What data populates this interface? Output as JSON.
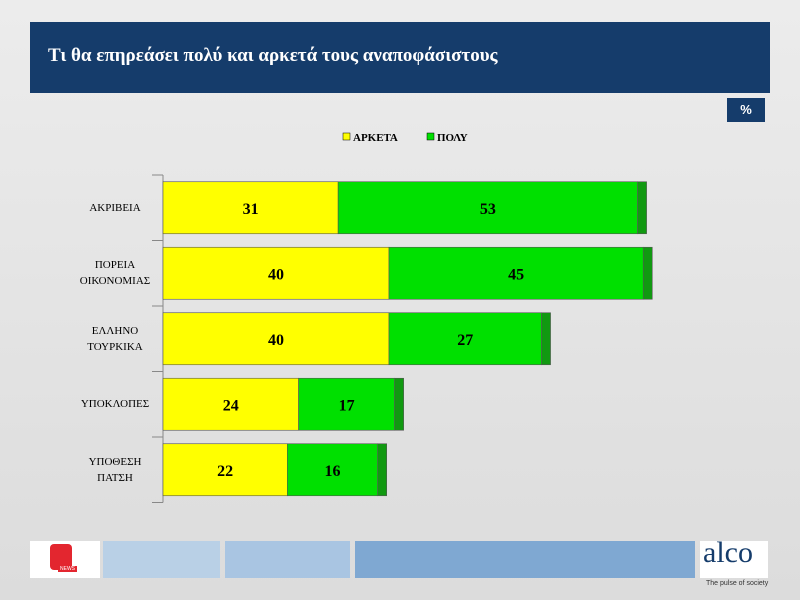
{
  "slide": {
    "title": "Τι θα επηρεάσει πολύ και αρκετά τους αναποφάσιστους",
    "unit": "%",
    "brand": "alco",
    "tagline": "The pulse of society",
    "news_logo": "NEWS"
  },
  "chart_data": {
    "type": "stacked-barh",
    "categories": [
      "ΑΚΡΙΒΕΙΑ",
      "ΠΟΡΕΙΑ\nΟΙΚΟΝΟΜΙΑΣ",
      "ΕΛΛΗΝΟ\nΤΟΥΡΚΙΚΑ",
      "ΥΠΟΚΛΟΠΕΣ",
      "ΥΠΟΘΕΣΗ\nΠΑΤΣΗ"
    ],
    "series": [
      {
        "name": "ΑΡΚΕΤΑ",
        "color": "#ffff00",
        "values": [
          31,
          40,
          40,
          24,
          22
        ]
      },
      {
        "name": "ΠΟΛΥ",
        "color": "#00e000",
        "values": [
          53,
          45,
          27,
          17,
          16
        ]
      }
    ]
  }
}
